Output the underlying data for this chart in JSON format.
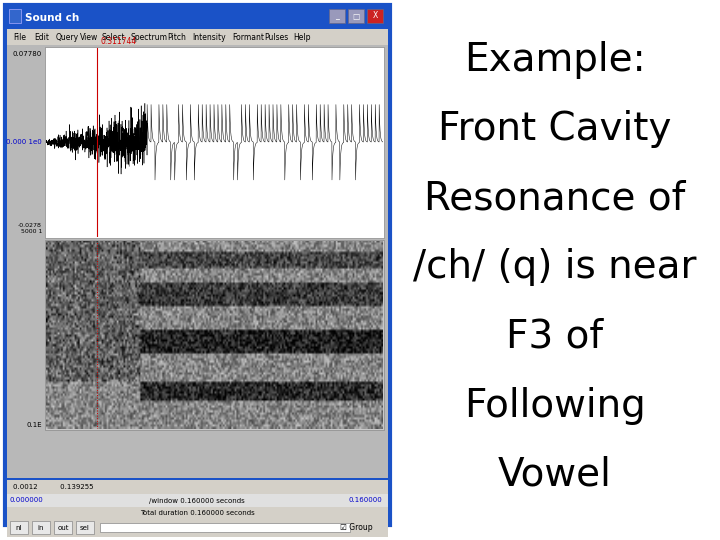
{
  "text_lines": [
    "Example:",
    "Front Cavity",
    "Resonance of",
    "/ch/ (q) is near",
    "F3 of",
    "Following",
    "Vowel"
  ],
  "bg_color": "#ffffff",
  "window_gray": "#c0c0c0",
  "content_gray": "#b8b8b8",
  "title_bar_color": "#1a52c7",
  "title_bar_text": "Sound ch",
  "title_text_color": "#000000",
  "text_fontsize": 28,
  "menu_items": [
    "File",
    "Edit",
    "Query",
    "View",
    "Select",
    "Spectrum",
    "Pitch",
    "Intensity",
    "Formant",
    "Pulses",
    "Help"
  ],
  "red_line_color": "#cc0000",
  "waveform_color": "#000000",
  "blue_label_color": "#0000cc",
  "wave_y_top": "0.07780",
  "wave_y_mid": "0.000 1e0",
  "wave_y_bot": "-0.0278\n5000 1",
  "time_cursor": "0.311744",
  "spec_y_label": "0.1E",
  "status1": "0.0012          0.139255",
  "status2": "0.000000",
  "status3": "/window 0.160000 seconds",
  "status4": "0.160000",
  "status5": "Total duration 0.160000 seconds",
  "btn_labels": [
    "nl",
    "in",
    "out",
    "sel"
  ],
  "seed": 42
}
